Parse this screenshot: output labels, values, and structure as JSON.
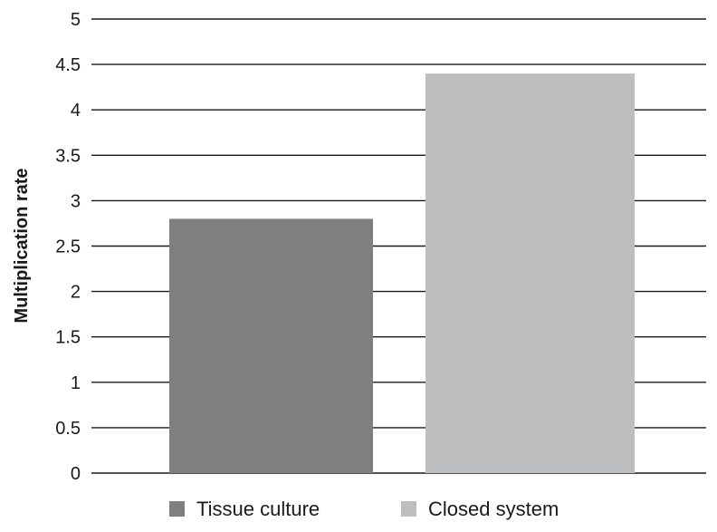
{
  "chart_data": {
    "type": "bar",
    "title": "",
    "xlabel": "",
    "ylabel": "Multiplication rate",
    "ylim": [
      0,
      5
    ],
    "yticks": [
      0,
      0.5,
      1,
      1.5,
      2,
      2.5,
      3,
      3.5,
      4,
      4.5,
      5
    ],
    "ytick_labels": [
      "0",
      "0.5",
      "1",
      "1.5",
      "2",
      "2.5",
      "3",
      "3.5",
      "4",
      "4.5",
      "5"
    ],
    "grid": true,
    "legend_position": "bottom",
    "series": [
      {
        "name": "Tissue culture",
        "value": 2.8,
        "color": "#7f7f80"
      },
      {
        "name": "Closed system",
        "value": 4.4,
        "color": "#bdbec0"
      }
    ]
  }
}
